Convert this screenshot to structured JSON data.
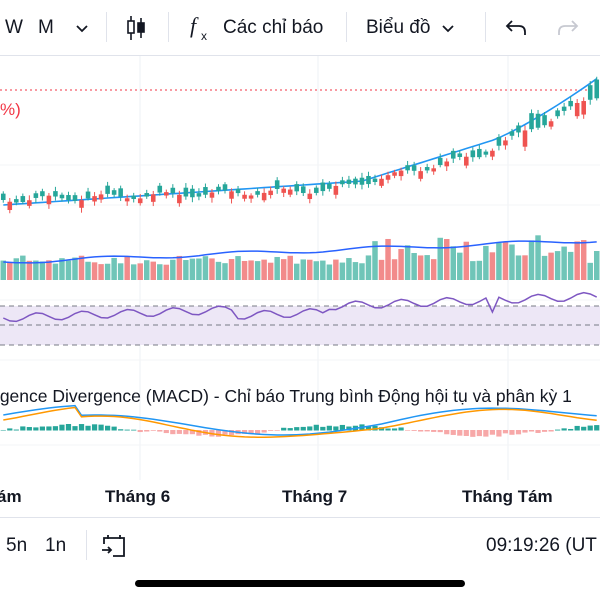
{
  "toolbar": {
    "interval_w": "W",
    "interval_m": "M",
    "indicators_label": "Các chỉ báo",
    "chart_type_label": "Biểu đồ"
  },
  "icons": {
    "interval_dropdown": "chevron-down-icon",
    "candles": "candlestick-icon",
    "indicators": "fx-icon",
    "chart_type_dropdown": "chevron-down-icon",
    "undo": "undo-icon",
    "redo": "redo-icon",
    "goto_date": "calendar-goto-icon"
  },
  "chart": {
    "percent_label": "%)",
    "indicator_label": "rgence Divergence (MACD) - Chỉ báo Trung bình Động hội tụ và phân kỳ 1",
    "x_labels": [
      "ám",
      "Tháng 6",
      "Tháng 7",
      "Tháng Tám"
    ]
  },
  "bottom": {
    "range_5n": "5n",
    "range_1n": "1n",
    "clock": "09:19:26 (UT"
  },
  "colors": {
    "up": "#26a69a",
    "down": "#ef5350",
    "ma_line": "#2196f3",
    "rsi_line": "#7e57c2",
    "macd_signal": "#ff9800"
  }
}
